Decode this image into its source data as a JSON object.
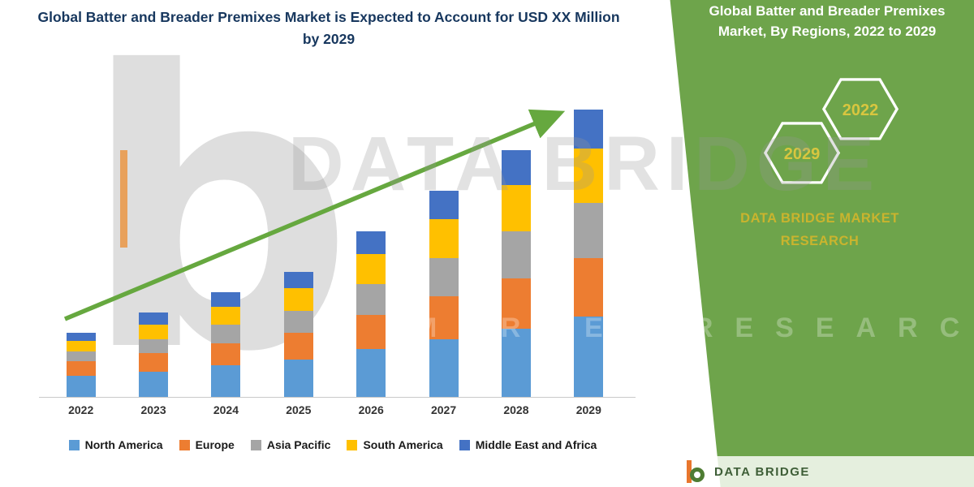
{
  "header": {
    "title": "Global Batter and Breader Premixes Market is Expected to Account for USD XX Million by 2029"
  },
  "chart_data": {
    "type": "bar",
    "stacked": true,
    "title": "Global Batter and Breader Premixes Market is Expected to Account for USD XX Million by 2029",
    "categories": [
      "2022",
      "2023",
      "2024",
      "2025",
      "2026",
      "2027",
      "2028",
      "2029"
    ],
    "series": [
      {
        "name": "North America",
        "color": "#5B9BD5",
        "values": [
          5.5,
          6.5,
          8,
          9.5,
          12,
          14.5,
          17,
          20
        ]
      },
      {
        "name": "Europe",
        "color": "#ED7D31",
        "values": [
          3.5,
          4.5,
          5.5,
          6.5,
          8.5,
          10.5,
          12.5,
          14.5
        ]
      },
      {
        "name": "Asia Pacific",
        "color": "#A5A5A5",
        "values": [
          2.5,
          3.5,
          4.5,
          5.5,
          7.5,
          9.5,
          11.5,
          13.5
        ]
      },
      {
        "name": "South America",
        "color": "#FFC000",
        "values": [
          2.5,
          3.5,
          4.5,
          5.5,
          7.5,
          9.5,
          11.5,
          13.5
        ]
      },
      {
        "name": "Middle East and Africa",
        "color": "#4472C4",
        "values": [
          2,
          3,
          3.5,
          4,
          5.5,
          7,
          8.5,
          9.5
        ]
      }
    ],
    "totals": [
      16,
      21,
      26,
      31,
      41,
      51,
      61,
      71
    ],
    "xlabel": "",
    "ylabel": "",
    "y_units": "USD Million (value shown as XX, undisclosed)",
    "ylim": [
      0,
      75
    ],
    "grid": false,
    "legend_position": "bottom",
    "trend_arrow": true,
    "trend_arrow_color": "#66A83F"
  },
  "side_panel": {
    "bg_color": "#6EA44B",
    "title": "Global Batter and Breader Premixes Market, By Regions, 2022 to 2029",
    "badge_2022": "2022",
    "badge_2029": "2029",
    "badge_text_color": "#D8C63F",
    "brand_text": "DATA BRIDGE MARKET RESEARCH",
    "brand_color": "#C9B42E"
  },
  "watermark": {
    "logo_letter": "b",
    "brand": "DATA BRIDGE",
    "tagline": "MARKET RESEARCH"
  },
  "footer_logo": {
    "name": "DATA BRIDGE"
  }
}
